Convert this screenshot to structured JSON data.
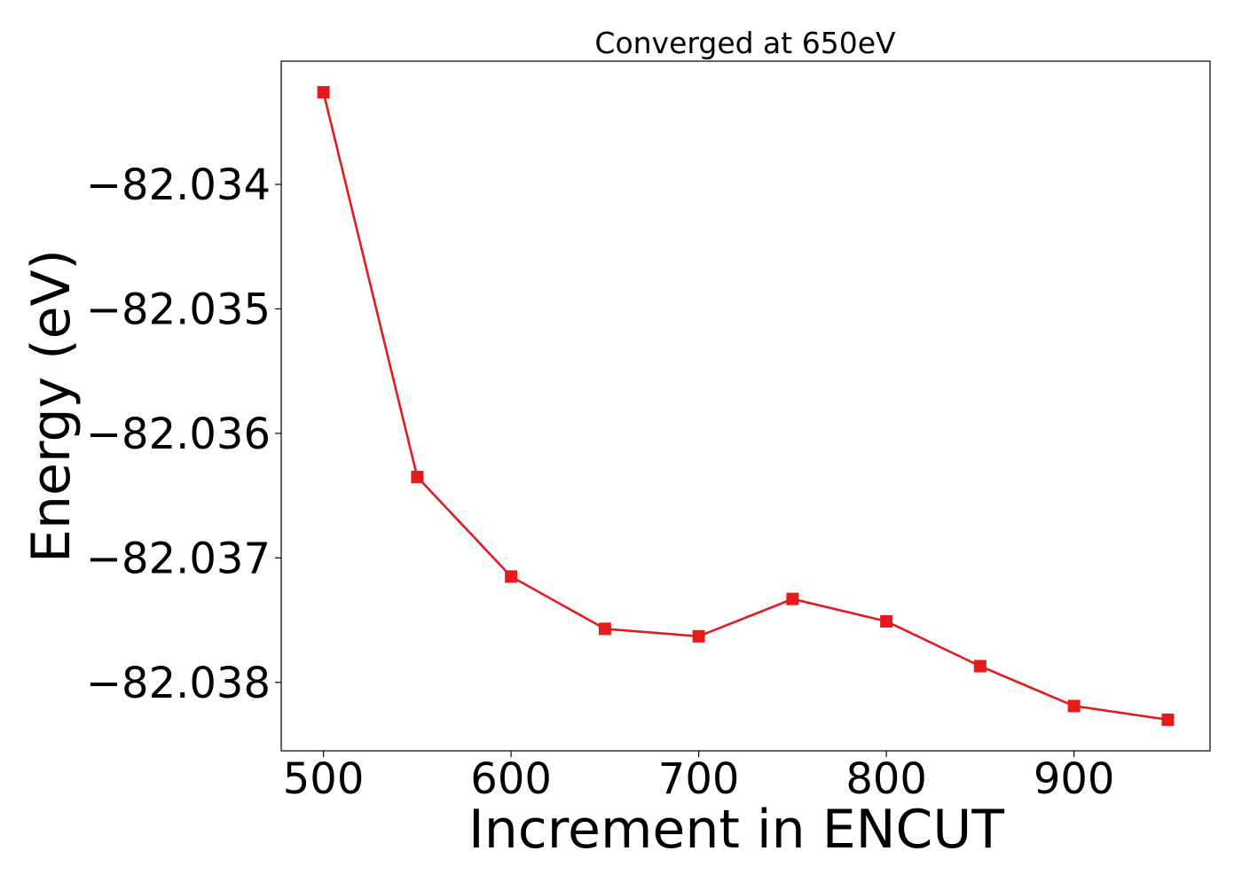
{
  "chart_data": {
    "type": "line",
    "title": "Converged at 650eV",
    "xlabel": "Increment in ENCUT",
    "ylabel": "Energy (eV)",
    "x": [
      500,
      550,
      600,
      650,
      700,
      750,
      800,
      850,
      900,
      950
    ],
    "series": [
      {
        "values": [
          -82.03326,
          -82.03635,
          -82.03715,
          -82.03757,
          -82.03763,
          -82.03733,
          -82.03751,
          -82.03787,
          -82.03819,
          -82.0383
        ],
        "color": "#e41a1c",
        "marker": "square"
      }
    ],
    "xlim": [
      477.5,
      972.5
    ],
    "ylim": [
      -82.03855,
      -82.03301
    ],
    "xticks": [
      500,
      600,
      700,
      800,
      900
    ],
    "xtick_labels": [
      "500",
      "600",
      "700",
      "800",
      "900"
    ],
    "yticks": [
      -82.034,
      -82.035,
      -82.036,
      -82.037,
      -82.038
    ],
    "ytick_labels": [
      "−82.034",
      "−82.035",
      "−82.036",
      "−82.037",
      "−82.038"
    ],
    "grid": false,
    "legend": "none"
  }
}
